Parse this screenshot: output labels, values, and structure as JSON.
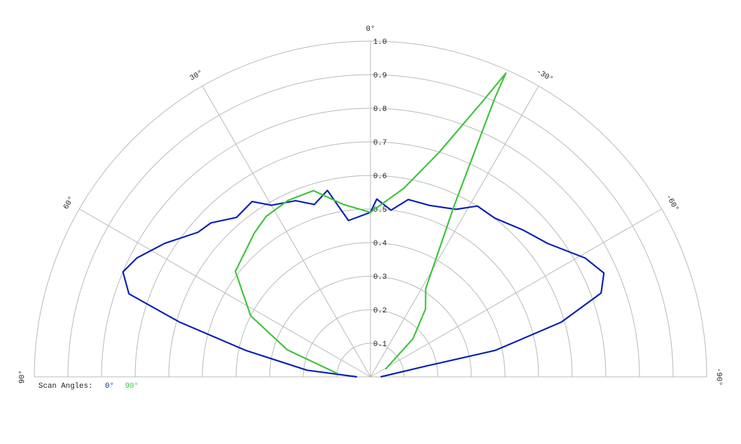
{
  "chart_data": {
    "type": "polar",
    "rlim": [
      0,
      1
    ],
    "rticks": [
      0.1,
      0.2,
      0.3,
      0.4,
      0.5,
      0.6,
      0.7,
      0.8,
      0.9,
      {
        "value": 1,
        "label": "1.0"
      }
    ],
    "thetalim": [
      90,
      -90
    ],
    "thetaticks": [
      {
        "value": 90,
        "label": "90°"
      },
      {
        "value": 60,
        "label": "60°"
      },
      {
        "value": 30,
        "label": "30°"
      },
      {
        "value": 0,
        "label": "0°"
      },
      {
        "value": -30,
        "label": "-30°"
      },
      {
        "value": -60,
        "label": "-60°"
      },
      {
        "value": -90,
        "label": "-90°"
      }
    ],
    "grid": true,
    "legend_title": "Scan Angles:",
    "legend": "bottom-left",
    "series": [
      {
        "name": "0°",
        "color": "#0a1fb4",
        "theta": [
          90,
          84,
          78,
          74,
          71,
          67,
          63,
          57,
          50,
          46,
          40,
          34,
          30,
          23,
          18,
          13,
          8,
          0,
          -2,
          -7,
          -12,
          -19,
          -27,
          -32,
          -38,
          -46,
          -53,
          -61,
          -66,
          -70,
          -74,
          -78,
          -79,
          -90
        ],
        "r": [
          0.04,
          0.19,
          0.38,
          0.59,
          0.76,
          0.8,
          0.78,
          0.73,
          0.67,
          0.66,
          0.62,
          0.63,
          0.59,
          0.57,
          0.54,
          0.57,
          0.47,
          0.49,
          0.53,
          0.5,
          0.54,
          0.54,
          0.56,
          0.6,
          0.6,
          0.63,
          0.66,
          0.73,
          0.76,
          0.73,
          0.59,
          0.38,
          0.17,
          0.03
        ]
      },
      {
        "name": "90°",
        "color": "#3cc43c",
        "theta": [
          84,
          72,
          63,
          52,
          39,
          33,
          25,
          17,
          9,
          0,
          -3,
          -10,
          -17,
          -22,
          -24,
          -24,
          -26,
          -32,
          -39,
          -48,
          -63
        ],
        "r": [
          0.1,
          0.26,
          0.4,
          0.51,
          0.55,
          0.57,
          0.58,
          0.58,
          0.52,
          0.49,
          0.51,
          0.57,
          0.7,
          0.88,
          0.99,
          0.91,
          0.57,
          0.31,
          0.26,
          0.17,
          0.05
        ]
      }
    ]
  }
}
